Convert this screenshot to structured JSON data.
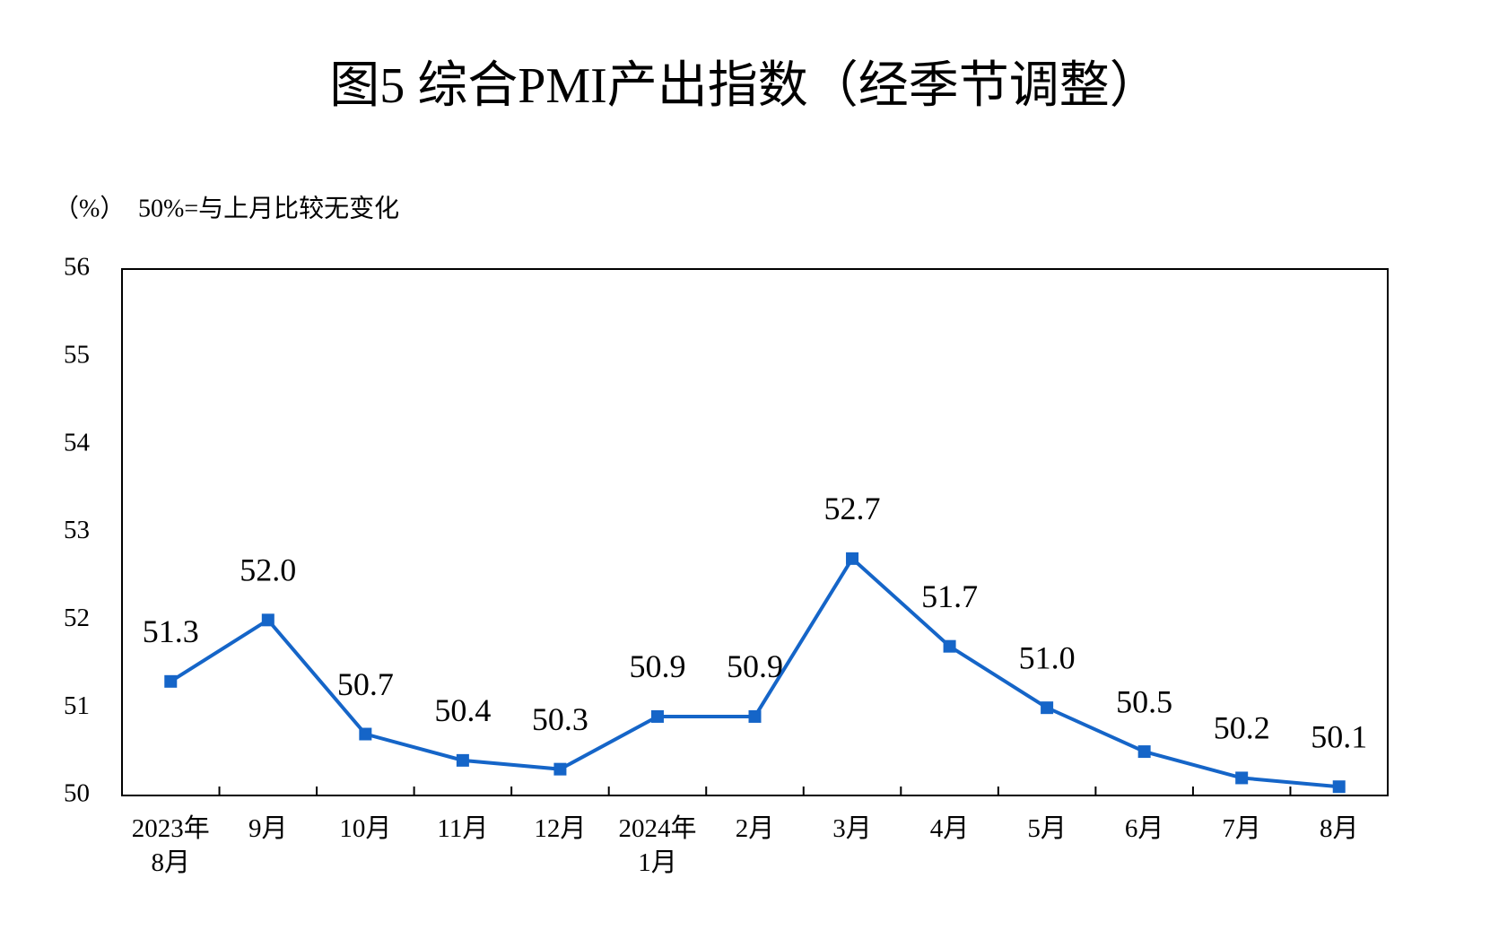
{
  "chart_data": {
    "type": "line",
    "title": "图5  综合PMI产出指数（经季节调整）",
    "y_label": "（%）",
    "note": "50%=与上月比较无变化",
    "categories": [
      "2023年\n8月",
      "9月",
      "10月",
      "11月",
      "12月",
      "2024年\n1月",
      "2月",
      "3月",
      "4月",
      "5月",
      "6月",
      "7月",
      "8月"
    ],
    "series": [
      {
        "name": "综合PMI产出指数",
        "color": "#1565c8",
        "values": [
          51.3,
          52.0,
          50.7,
          50.4,
          50.3,
          50.9,
          50.9,
          52.7,
          51.7,
          51.0,
          50.5,
          50.2,
          50.1
        ],
        "value_labels": [
          "51.3",
          "52.0",
          "50.7",
          "50.4",
          "50.3",
          "50.9",
          "50.9",
          "52.7",
          "51.7",
          "51.0",
          "50.5",
          "50.2",
          "50.1"
        ]
      }
    ],
    "ylim": [
      50,
      56
    ],
    "yticks": [
      50,
      51,
      52,
      53,
      54,
      55,
      56
    ],
    "grid": false
  }
}
